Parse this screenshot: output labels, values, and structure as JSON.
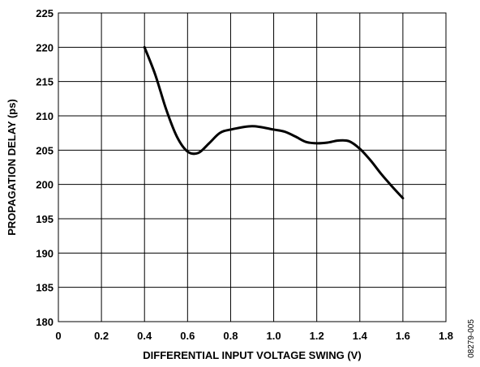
{
  "chart_data": {
    "type": "line",
    "title": "",
    "xlabel": "DIFFERENTIAL INPUT VOLTAGE SWING (V)",
    "ylabel": "PROPAGATION DELAY (ps)",
    "xlim": [
      0,
      1.8
    ],
    "ylim": [
      180,
      225
    ],
    "x_ticks": [
      0,
      0.2,
      0.4,
      0.6,
      0.8,
      1.0,
      1.2,
      1.4,
      1.6,
      1.8
    ],
    "x_tick_labels": [
      "0",
      "0.2",
      "0.4",
      "0.6",
      "0.8",
      "1.0",
      "1.2",
      "1.4",
      "1.6",
      "1.8"
    ],
    "y_ticks": [
      180,
      185,
      190,
      195,
      200,
      205,
      210,
      215,
      220,
      225
    ],
    "y_tick_labels": [
      "180",
      "185",
      "190",
      "195",
      "200",
      "205",
      "210",
      "215",
      "220",
      "225"
    ],
    "grid": true,
    "legend": "none",
    "series": [
      {
        "x": [
          0.4,
          0.45,
          0.5,
          0.55,
          0.6,
          0.65,
          0.7,
          0.75,
          0.8,
          0.9,
          1.0,
          1.05,
          1.1,
          1.15,
          1.2,
          1.25,
          1.3,
          1.35,
          1.4,
          1.45,
          1.5,
          1.55,
          1.6
        ],
        "y": [
          220.0,
          216.0,
          211.0,
          207.0,
          204.8,
          204.6,
          206.0,
          207.5,
          208.0,
          208.5,
          208.0,
          207.7,
          207.0,
          206.2,
          206.0,
          206.1,
          206.4,
          206.3,
          205.2,
          203.5,
          201.5,
          199.7,
          198.0
        ]
      }
    ],
    "line_color": "#000000"
  },
  "figure_id": "08279-005"
}
